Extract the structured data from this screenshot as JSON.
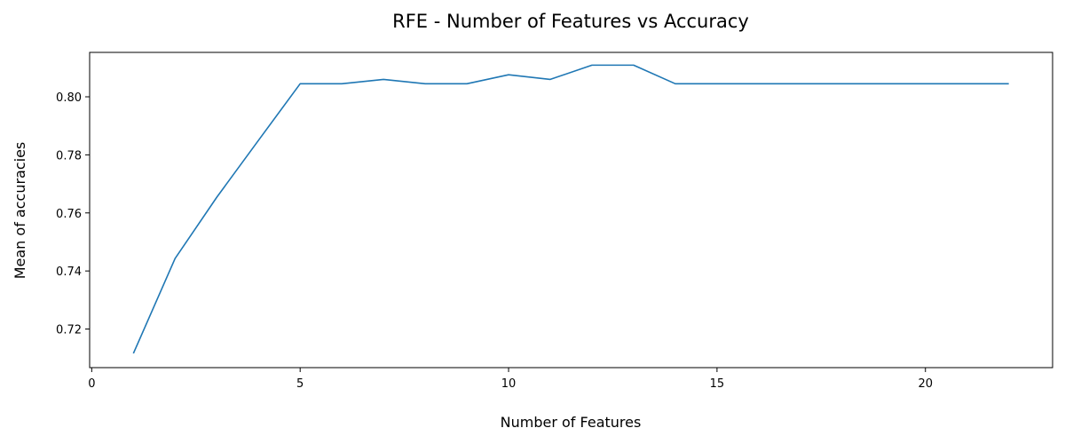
{
  "chart_data": {
    "type": "line",
    "title": "RFE - Number of Features vs Accuracy",
    "xlabel": "Number of Features",
    "ylabel": "Mean of accuracies",
    "xlim": [
      -0.05,
      23.05
    ],
    "ylim": [
      0.7067,
      0.8153
    ],
    "xticks": [
      0,
      5,
      10,
      15,
      20
    ],
    "yticks": [
      0.72,
      0.74,
      0.76,
      0.78,
      0.8
    ],
    "ytick_labels": [
      "0.72",
      "0.74",
      "0.76",
      "0.78",
      "0.80"
    ],
    "grid": false,
    "series": [
      {
        "color": "#1f77b4",
        "x": [
          1,
          2,
          3,
          4,
          5,
          6,
          7,
          8,
          9,
          10,
          11,
          12,
          13,
          14,
          15,
          16,
          17,
          18,
          19,
          20,
          21,
          22
        ],
        "y": [
          0.7116,
          0.7443,
          0.7654,
          0.785,
          0.8045,
          0.8045,
          0.806,
          0.8045,
          0.8045,
          0.8076,
          0.806,
          0.8109,
          0.8109,
          0.8045,
          0.8045,
          0.8045,
          0.8045,
          0.8045,
          0.8045,
          0.8045,
          0.8045,
          0.8045
        ]
      }
    ]
  }
}
